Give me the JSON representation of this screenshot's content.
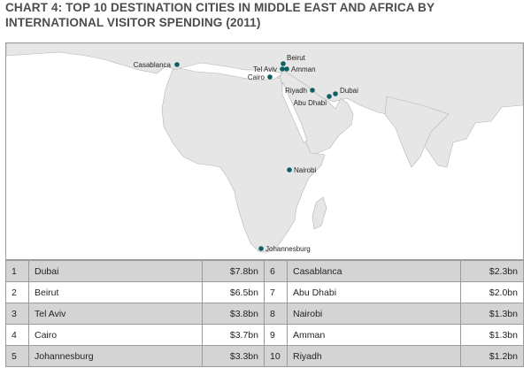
{
  "title": "CHART 4: TOP 10 DESTINATION CITIES IN MIDDLE EAST AND AFRICA BY INTERNATIONAL VISITOR SPENDING (2011)",
  "colors": {
    "dot": "#0f6064",
    "land": "#e6e6e6",
    "border": "#9a9a9a",
    "row_alt": "#d4d4d4"
  },
  "map": {
    "cities": [
      {
        "name": "Casablanca"
      },
      {
        "name": "Beirut"
      },
      {
        "name": "Tel Aviv"
      },
      {
        "name": "Amman"
      },
      {
        "name": "Cairo"
      },
      {
        "name": "Riyadh"
      },
      {
        "name": "Dubai"
      },
      {
        "name": "Abu Dhabi"
      },
      {
        "name": "Nairobi"
      },
      {
        "name": "Johannesburg"
      }
    ]
  },
  "table": {
    "rows": [
      {
        "left": {
          "rank": "1",
          "city": "Dubai",
          "value": "$7.8bn"
        },
        "right": {
          "rank": "6",
          "city": "Casablanca",
          "value": "$2.3bn"
        }
      },
      {
        "left": {
          "rank": "2",
          "city": "Beirut",
          "value": "$6.5bn"
        },
        "right": {
          "rank": "7",
          "city": "Abu Dhabi",
          "value": "$2.0bn"
        }
      },
      {
        "left": {
          "rank": "3",
          "city": "Tel Aviv",
          "value": "$3.8bn"
        },
        "right": {
          "rank": "8",
          "city": "Nairobi",
          "value": "$1.3bn"
        }
      },
      {
        "left": {
          "rank": "4",
          "city": "Cairo",
          "value": "$3.7bn"
        },
        "right": {
          "rank": "9",
          "city": "Amman",
          "value": "$1.3bn"
        }
      },
      {
        "left": {
          "rank": "5",
          "city": "Johannesburg",
          "value": "$3.3bn"
        },
        "right": {
          "rank": "10",
          "city": "Riyadh",
          "value": "$1.2bn"
        }
      }
    ]
  }
}
